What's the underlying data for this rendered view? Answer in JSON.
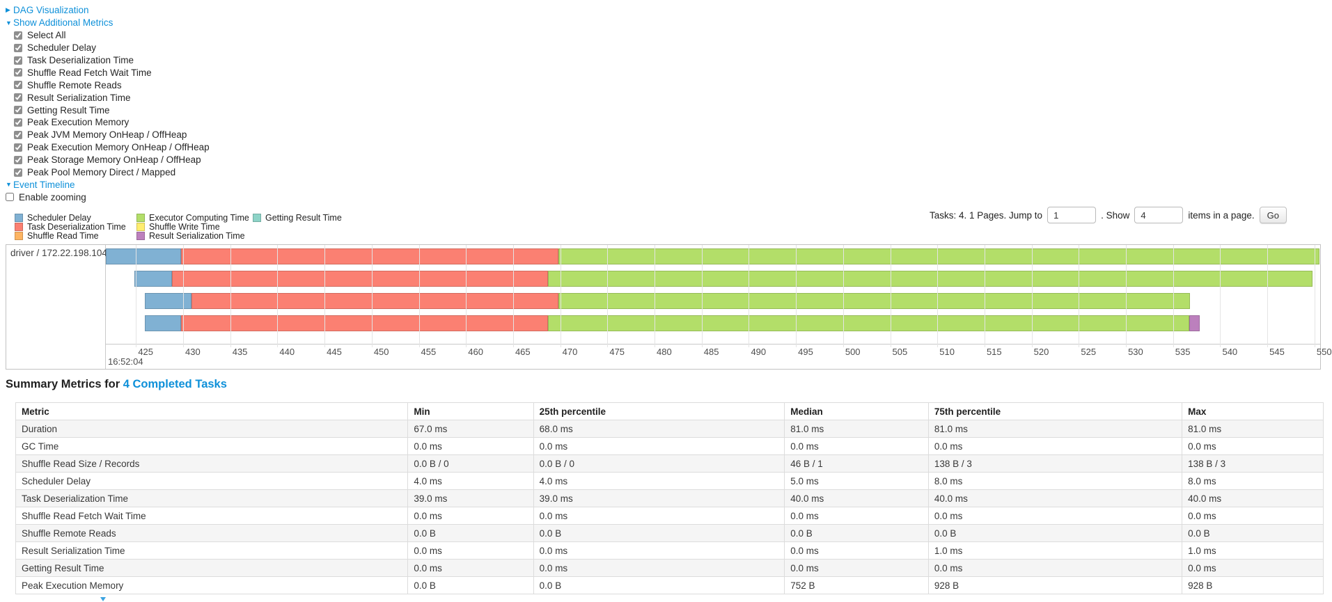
{
  "colors": {
    "link_blue": "#0e90d9",
    "grid": "#e4e4e4",
    "chart_border": "#c2c2c2"
  },
  "sections": {
    "dag": {
      "arrow": "▶",
      "label": "DAG Visualization"
    },
    "metrics": {
      "arrow": "▼",
      "label": "Show Additional Metrics"
    },
    "timeline": {
      "arrow": "▼",
      "label": "Event Timeline"
    }
  },
  "metrics_panel": {
    "items": [
      {
        "label": "Select All",
        "checked": true
      },
      {
        "label": "Scheduler Delay",
        "checked": true
      },
      {
        "label": "Task Deserialization Time",
        "checked": true
      },
      {
        "label": "Shuffle Read Fetch Wait Time",
        "checked": true
      },
      {
        "label": "Shuffle Remote Reads",
        "checked": true
      },
      {
        "label": "Result Serialization Time",
        "checked": true
      },
      {
        "label": "Getting Result Time",
        "checked": true
      },
      {
        "label": "Peak Execution Memory",
        "checked": true
      },
      {
        "label": "Peak JVM Memory OnHeap / OffHeap",
        "checked": true
      },
      {
        "label": "Peak Execution Memory OnHeap / OffHeap",
        "checked": true
      },
      {
        "label": "Peak Storage Memory OnHeap / OffHeap",
        "checked": true
      },
      {
        "label": "Peak Pool Memory Direct / Mapped",
        "checked": true
      }
    ]
  },
  "enable_zooming": {
    "label": "Enable zooming",
    "checked": false
  },
  "legend": {
    "columns": [
      [
        {
          "label": "Scheduler Delay",
          "color": "#80B1D3"
        },
        {
          "label": "Task Deserialization Time",
          "color": "#FB8072"
        },
        {
          "label": "Shuffle Read Time",
          "color": "#FDB462"
        }
      ],
      [
        {
          "label": "Executor Computing Time",
          "color": "#B3DE69"
        },
        {
          "label": "Shuffle Write Time",
          "color": "#FFED6F"
        },
        {
          "label": "Result Serialization Time",
          "color": "#BC80BD"
        }
      ],
      [
        {
          "label": "Getting Result Time",
          "color": "#8DD3C7"
        }
      ]
    ]
  },
  "pagination": {
    "tasks_text": "Tasks: 4. 1 Pages. Jump to",
    "jump_value": "1",
    "show_text": ". Show",
    "show_value": "4",
    "items_text": "items in a page.",
    "go_label": "Go"
  },
  "chart_data": {
    "type": "timeline",
    "group_label": "driver / 172.22.198.104",
    "axis": {
      "min": 421.8,
      "max": 550.6,
      "tick_start": 425,
      "tick_step": 5,
      "tick_end": 550,
      "major_label": "16:52:04",
      "unit": "ms after 16:52:04"
    },
    "segment_colors": {
      "scheduler_delay": "#80B1D3",
      "task_deserialization": "#FB8072",
      "executor_computing": "#B3DE69",
      "result_serialization": "#BC80BD"
    },
    "tasks": [
      {
        "segments": [
          {
            "type": "scheduler_delay",
            "start": 421.8,
            "end": 429.8
          },
          {
            "type": "task_deserialization",
            "start": 429.8,
            "end": 469.8
          },
          {
            "type": "executor_computing",
            "start": 469.8,
            "end": 550.5
          }
        ]
      },
      {
        "segments": [
          {
            "type": "scheduler_delay",
            "start": 424.8,
            "end": 428.8
          },
          {
            "type": "task_deserialization",
            "start": 428.8,
            "end": 468.7
          },
          {
            "type": "executor_computing",
            "start": 468.7,
            "end": 549.8
          }
        ]
      },
      {
        "segments": [
          {
            "type": "scheduler_delay",
            "start": 425.9,
            "end": 430.9
          },
          {
            "type": "task_deserialization",
            "start": 430.9,
            "end": 469.8
          },
          {
            "type": "executor_computing",
            "start": 469.8,
            "end": 536.8
          }
        ]
      },
      {
        "segments": [
          {
            "type": "scheduler_delay",
            "start": 425.9,
            "end": 429.8
          },
          {
            "type": "task_deserialization",
            "start": 429.8,
            "end": 468.7
          },
          {
            "type": "executor_computing",
            "start": 468.7,
            "end": 536.7
          },
          {
            "type": "result_serialization",
            "start": 536.7,
            "end": 537.8
          }
        ]
      }
    ]
  },
  "summary": {
    "title_prefix": "Summary Metrics for ",
    "title_link": "4 Completed Tasks",
    "table": {
      "headers": [
        "Metric",
        "Min",
        "25th percentile",
        "Median",
        "75th percentile",
        "Max"
      ],
      "col_widths": [
        "30%",
        "9.6%",
        "19.2%",
        "11%",
        "19.4%",
        "10.8%"
      ],
      "rows": [
        [
          "Duration",
          "67.0 ms",
          "68.0 ms",
          "81.0 ms",
          "81.0 ms",
          "81.0 ms"
        ],
        [
          "GC Time",
          "0.0 ms",
          "0.0 ms",
          "0.0 ms",
          "0.0 ms",
          "0.0 ms"
        ],
        [
          "Shuffle Read Size / Records",
          "0.0 B / 0",
          "0.0 B / 0",
          "46 B / 1",
          "138 B / 3",
          "138 B / 3"
        ],
        [
          "Scheduler Delay",
          "4.0 ms",
          "4.0 ms",
          "5.0 ms",
          "8.0 ms",
          "8.0 ms"
        ],
        [
          "Task Deserialization Time",
          "39.0 ms",
          "39.0 ms",
          "40.0 ms",
          "40.0 ms",
          "40.0 ms"
        ],
        [
          "Shuffle Read Fetch Wait Time",
          "0.0 ms",
          "0.0 ms",
          "0.0 ms",
          "0.0 ms",
          "0.0 ms"
        ],
        [
          "Shuffle Remote Reads",
          "0.0 B",
          "0.0 B",
          "0.0 B",
          "0.0 B",
          "0.0 B"
        ],
        [
          "Result Serialization Time",
          "0.0 ms",
          "0.0 ms",
          "0.0 ms",
          "1.0 ms",
          "1.0 ms"
        ],
        [
          "Getting Result Time",
          "0.0 ms",
          "0.0 ms",
          "0.0 ms",
          "0.0 ms",
          "0.0 ms"
        ],
        [
          "Peak Execution Memory",
          "0.0 B",
          "0.0 B",
          "752 B",
          "928 B",
          "928 B"
        ]
      ]
    }
  }
}
